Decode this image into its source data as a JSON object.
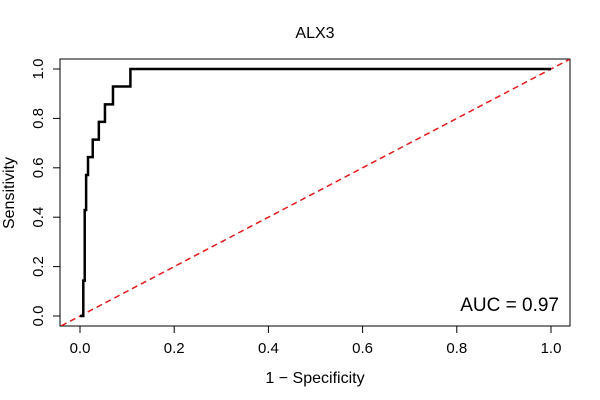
{
  "chart_data": {
    "type": "line",
    "title": "ALX3",
    "xlabel": "1 − Specificity",
    "ylabel": "Sensitivity",
    "xlim": [
      0,
      1
    ],
    "ylim": [
      0,
      1
    ],
    "xticks": [
      "0.0",
      "0.2",
      "0.4",
      "0.6",
      "0.8",
      "1.0"
    ],
    "yticks": [
      "0.0",
      "0.2",
      "0.4",
      "0.6",
      "0.8",
      "1.0"
    ],
    "grid": false,
    "annotation": "AUC = 0.97",
    "series": [
      {
        "name": "ROC curve",
        "color": "#000000",
        "style": "solid",
        "x": [
          0.0,
          0.007,
          0.007,
          0.01,
          0.01,
          0.013,
          0.013,
          0.017,
          0.017,
          0.02,
          0.02,
          0.027,
          0.027,
          0.04,
          0.04,
          0.053,
          0.053,
          0.07,
          0.07,
          0.107,
          0.107,
          1.0
        ],
        "y": [
          0.0,
          0.0,
          0.143,
          0.143,
          0.429,
          0.429,
          0.571,
          0.571,
          0.643,
          0.643,
          0.643,
          0.643,
          0.714,
          0.714,
          0.786,
          0.786,
          0.857,
          0.857,
          0.929,
          0.929,
          1.0,
          1.0
        ]
      },
      {
        "name": "Reference (chance) line",
        "color": "#e41a1c",
        "style": "dashed",
        "x": [
          -0.04,
          1.04
        ],
        "y": [
          -0.04,
          1.04
        ]
      }
    ]
  }
}
